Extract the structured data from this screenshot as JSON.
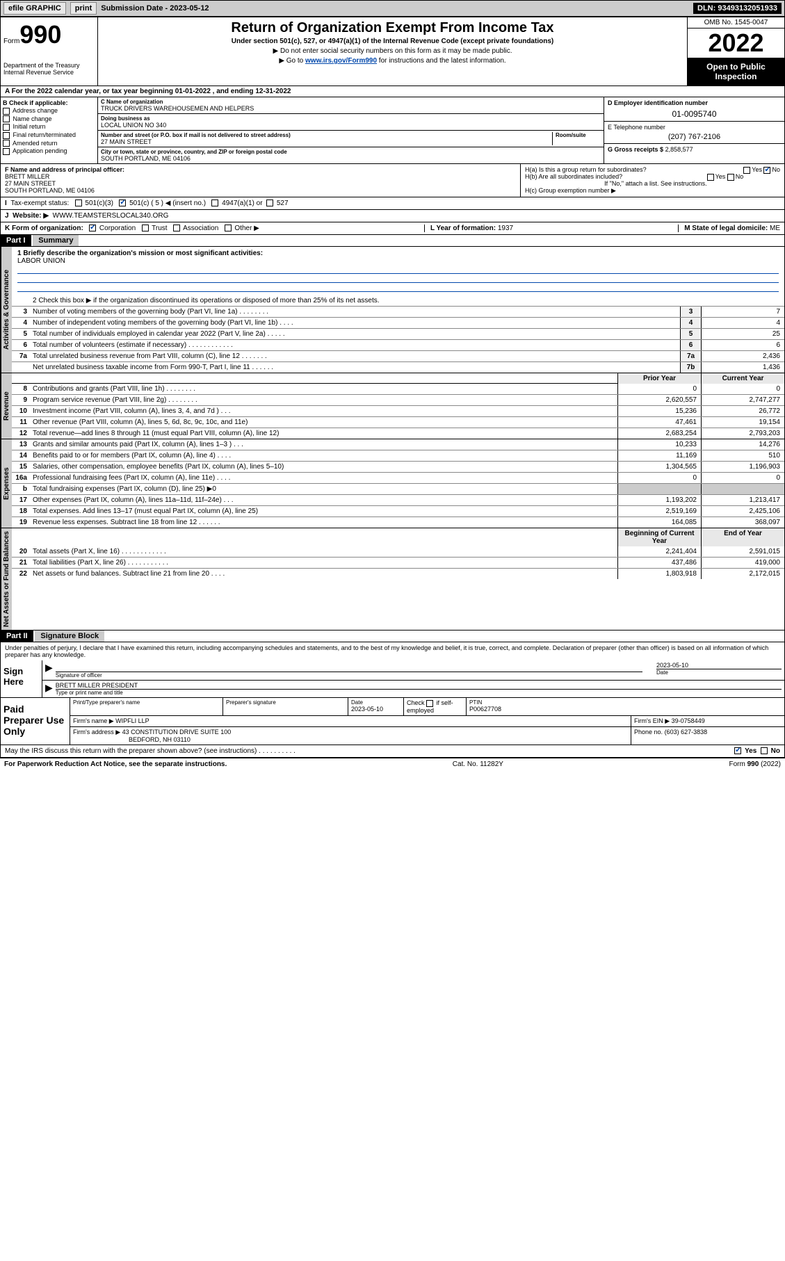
{
  "topbar": {
    "efile": "efile GRAPHIC",
    "print": "print",
    "sub_label": "Submission Date -",
    "sub_date": "2023-05-12",
    "dln": "DLN: 93493132051933"
  },
  "header": {
    "form_word": "Form",
    "form_num": "990",
    "dept": "Department of the Treasury Internal Revenue Service",
    "title": "Return of Organization Exempt From Income Tax",
    "subtitle": "Under section 501(c), 527, or 4947(a)(1) of the Internal Revenue Code (except private foundations)",
    "note1": "▶ Do not enter social security numbers on this form as it may be made public.",
    "note2_pre": "▶ Go to ",
    "note2_link": "www.irs.gov/Form990",
    "note2_post": " for instructions and the latest information.",
    "omb": "OMB No. 1545-0047",
    "year": "2022",
    "open": "Open to Public Inspection"
  },
  "period": {
    "text": "A For the 2022 calendar year, or tax year beginning 01-01-2022    , and ending 12-31-2022"
  },
  "B": {
    "label": "B Check if applicable:",
    "opts": [
      "Address change",
      "Name change",
      "Initial return",
      "Final return/terminated",
      "Amended return",
      "Application pending"
    ]
  },
  "C": {
    "name_lbl": "C Name of organization",
    "name": "TRUCK DRIVERS WAREHOUSEMEN AND HELPERS",
    "dba_lbl": "Doing business as",
    "dba": "LOCAL UNION NO 340",
    "addr_lbl": "Number and street (or P.O. box if mail is not delivered to street address)",
    "room_lbl": "Room/suite",
    "addr": "27 MAIN STREET",
    "city_lbl": "City or town, state or province, country, and ZIP or foreign postal code",
    "city": "SOUTH PORTLAND, ME  04106"
  },
  "DE": {
    "d_lbl": "D Employer identification number",
    "ein": "01-0095740",
    "e_lbl": "E Telephone number",
    "phone": "(207) 767-2106",
    "g_lbl": "G Gross receipts $",
    "g_val": "2,858,577"
  },
  "F": {
    "lbl": "F Name and address of principal officer:",
    "name": "BRETT MILLER",
    "addr1": "27 MAIN STREET",
    "addr2": "SOUTH PORTLAND, ME  04106"
  },
  "H": {
    "a": "H(a)  Is this a group return for subordinates?",
    "b": "H(b)  Are all subordinates included?",
    "note": "If \"No,\" attach a list. See instructions.",
    "c": "H(c)  Group exemption number ▶"
  },
  "I": {
    "lbl": "Tax-exempt status:",
    "opt1": "501(c)(3)",
    "opt2": "501(c) ( 5 ) ◀ (insert no.)",
    "opt3": "4947(a)(1) or",
    "opt4": "527"
  },
  "J": {
    "lbl": "Website: ▶",
    "url": "WWW.TEAMSTERSLOCAL340.ORG"
  },
  "K": {
    "lbl": "K Form of organization:",
    "opts": [
      "Corporation",
      "Trust",
      "Association",
      "Other ▶"
    ]
  },
  "L": {
    "lbl": "L Year of formation:",
    "val": "1937"
  },
  "M": {
    "lbl": "M State of legal domicile:",
    "val": "ME"
  },
  "part1": {
    "hdr": "Part I",
    "title": "Summary",
    "line1_lbl": "1  Briefly describe the organization's mission or most significant activities:",
    "mission": "LABOR UNION",
    "line2": "2    Check this box ▶        if the organization discontinued its operations or disposed of more than 25% of its net assets.",
    "sections": {
      "gov": "Activities & Governance",
      "rev": "Revenue",
      "exp": "Expenses",
      "net": "Net Assets or Fund Balances"
    },
    "gov_lines": [
      {
        "n": "3",
        "t": "Number of voting members of the governing body (Part VI, line 1a)   .   .   .   .   .   .   .   .",
        "b": "3",
        "v": "7"
      },
      {
        "n": "4",
        "t": "Number of independent voting members of the governing body (Part VI, line 1b)   .   .   .   .",
        "b": "4",
        "v": "4"
      },
      {
        "n": "5",
        "t": "Total number of individuals employed in calendar year 2022 (Part V, line 2a)   .   .   .   .   .",
        "b": "5",
        "v": "25"
      },
      {
        "n": "6",
        "t": "Total number of volunteers (estimate if necessary)   .   .   .   .   .   .   .   .   .   .   .   .",
        "b": "6",
        "v": "6"
      },
      {
        "n": "7a",
        "t": "Total unrelated business revenue from Part VIII, column (C), line 12   .   .   .   .   .   .   .",
        "b": "7a",
        "v": "2,436"
      },
      {
        "n": "",
        "t": "Net unrelated business taxable income from Form 990-T, Part I, line 11   .   .   .   .   .   .",
        "b": "7b",
        "v": "1,436"
      }
    ],
    "col_hdr": {
      "prior": "Prior Year",
      "current": "Current Year"
    },
    "rev_lines": [
      {
        "n": "8",
        "t": "Contributions and grants (Part VIII, line 1h)   .   .   .   .   .   .   .   .",
        "p": "0",
        "c": "0"
      },
      {
        "n": "9",
        "t": "Program service revenue (Part VIII, line 2g)   .   .   .   .   .   .   .   .",
        "p": "2,620,557",
        "c": "2,747,277"
      },
      {
        "n": "10",
        "t": "Investment income (Part VIII, column (A), lines 3, 4, and 7d )   .   .   .",
        "p": "15,236",
        "c": "26,772"
      },
      {
        "n": "11",
        "t": "Other revenue (Part VIII, column (A), lines 5, 6d, 8c, 9c, 10c, and 11e)",
        "p": "47,461",
        "c": "19,154"
      },
      {
        "n": "12",
        "t": "Total revenue—add lines 8 through 11 (must equal Part VIII, column (A), line 12)",
        "p": "2,683,254",
        "c": "2,793,203"
      }
    ],
    "exp_lines": [
      {
        "n": "13",
        "t": "Grants and similar amounts paid (Part IX, column (A), lines 1–3 )   .   .   .",
        "p": "10,233",
        "c": "14,276"
      },
      {
        "n": "14",
        "t": "Benefits paid to or for members (Part IX, column (A), line 4)   .   .   .   .",
        "p": "11,169",
        "c": "510"
      },
      {
        "n": "15",
        "t": "Salaries, other compensation, employee benefits (Part IX, column (A), lines 5–10)",
        "p": "1,304,565",
        "c": "1,196,903"
      },
      {
        "n": "16a",
        "t": "Professional fundraising fees (Part IX, column (A), line 11e)   .   .   .   .",
        "p": "0",
        "c": "0"
      },
      {
        "n": "b",
        "t": "Total fundraising expenses (Part IX, column (D), line 25) ▶0",
        "p": "",
        "c": "",
        "shade": true
      },
      {
        "n": "17",
        "t": "Other expenses (Part IX, column (A), lines 11a–11d, 11f–24e)   .   .   .",
        "p": "1,193,202",
        "c": "1,213,417"
      },
      {
        "n": "18",
        "t": "Total expenses. Add lines 13–17 (must equal Part IX, column (A), line 25)",
        "p": "2,519,169",
        "c": "2,425,106"
      },
      {
        "n": "19",
        "t": "Revenue less expenses. Subtract line 18 from line 12   .   .   .   .   .   .",
        "p": "164,085",
        "c": "368,097"
      }
    ],
    "net_hdr": {
      "begin": "Beginning of Current Year",
      "end": "End of Year"
    },
    "net_lines": [
      {
        "n": "20",
        "t": "Total assets (Part X, line 16)   .   .   .   .   .   .   .   .   .   .   .   .",
        "p": "2,241,404",
        "c": "2,591,015"
      },
      {
        "n": "21",
        "t": "Total liabilities (Part X, line 26)   .   .   .   .   .   .   .   .   .   .   .",
        "p": "437,486",
        "c": "419,000"
      },
      {
        "n": "22",
        "t": "Net assets or fund balances. Subtract line 21 from line 20   .   .   .   .",
        "p": "1,803,918",
        "c": "2,172,015"
      }
    ]
  },
  "part2": {
    "hdr": "Part II",
    "title": "Signature Block",
    "decl": "Under penalties of perjury, I declare that I have examined this return, including accompanying schedules and statements, and to the best of my knowledge and belief, it is true, correct, and complete. Declaration of preparer (other than officer) is based on all information of which preparer has any knowledge."
  },
  "sign": {
    "here": "Sign Here",
    "sig_lbl": "Signature of officer",
    "date_lbl": "Date",
    "date": "2023-05-10",
    "name": "BRETT MILLER PRESIDENT",
    "name_lbl": "Type or print name and title"
  },
  "paid": {
    "title": "Paid Preparer Use Only",
    "col1": "Print/Type preparer's name",
    "col2": "Preparer's signature",
    "col3": "Date",
    "date": "2023-05-10",
    "col4_lbl": "Check",
    "col4_txt": "if self-employed",
    "ptin_lbl": "PTIN",
    "ptin": "P00627708",
    "firm_name_lbl": "Firm's name    ▶",
    "firm_name": "WIPFLI LLP",
    "firm_ein_lbl": "Firm's EIN ▶",
    "firm_ein": "39-0758449",
    "firm_addr_lbl": "Firm's address ▶",
    "firm_addr1": "43 CONSTITUTION DRIVE SUITE 100",
    "firm_addr2": "BEDFORD, NH  03110",
    "phone_lbl": "Phone no.",
    "phone": "(603) 627-3838"
  },
  "discuss": {
    "txt": "May the IRS discuss this return with the preparer shown above? (see instructions)   .   .   .   .   .   .   .   .   .   .",
    "yes": "Yes",
    "no": "No"
  },
  "footer": {
    "left": "For Paperwork Reduction Act Notice, see the separate instructions.",
    "mid": "Cat. No. 11282Y",
    "right": "Form 990 (2022)"
  }
}
